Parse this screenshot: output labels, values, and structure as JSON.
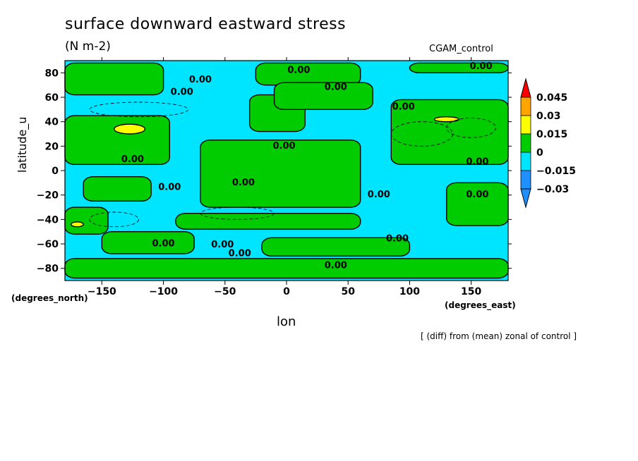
{
  "chart_data": {
    "type": "heatmap",
    "title": "surface downward eastward stress",
    "subtitle": "(N m-2)",
    "run_label": "CGAM_control",
    "xlabel": "lon",
    "ylabel": "latitude_u",
    "x_units": "(degrees_east)",
    "y_units": "(degrees_north)",
    "note": "[ (diff) from (mean) zonal of control ]",
    "xlim": [
      -180,
      180
    ],
    "ylim": [
      -90,
      90
    ],
    "xticks": [
      -150,
      -100,
      -50,
      0,
      50,
      100,
      150
    ],
    "yticks": [
      80,
      60,
      40,
      20,
      0,
      -20,
      -40,
      -60,
      -80
    ],
    "colorbar": {
      "levels": [
        "0.045",
        "0.03",
        "0.015",
        "0",
        "-0.015",
        "-0.03"
      ],
      "colors": [
        "#ff0000",
        "#ffa500",
        "#ffff00",
        "#00cc00",
        "#00e5ff",
        "#1e90ff"
      ]
    },
    "contour_label": "0.00",
    "positive_regions": [
      {
        "lon": [
          -180,
          -100
        ],
        "lat": [
          62,
          88
        ]
      },
      {
        "lon": [
          -25,
          60
        ],
        "lat": [
          70,
          88
        ]
      },
      {
        "lon": [
          100,
          180
        ],
        "lat": [
          80,
          88
        ]
      },
      {
        "lon": [
          -180,
          -95
        ],
        "lat": [
          5,
          45
        ]
      },
      {
        "lon": [
          -30,
          15
        ],
        "lat": [
          32,
          62
        ]
      },
      {
        "lon": [
          -10,
          70
        ],
        "lat": [
          50,
          72
        ]
      },
      {
        "lon": [
          85,
          180
        ],
        "lat": [
          5,
          58
        ]
      },
      {
        "lon": [
          -70,
          60
        ],
        "lat": [
          -30,
          25
        ]
      },
      {
        "lon": [
          -165,
          -110
        ],
        "lat": [
          -25,
          -5
        ]
      },
      {
        "lon": [
          130,
          180
        ],
        "lat": [
          -45,
          -10
        ]
      },
      {
        "lon": [
          -180,
          -145
        ],
        "lat": [
          -52,
          -30
        ]
      },
      {
        "lon": [
          -90,
          60
        ],
        "lat": [
          -48,
          -35
        ]
      },
      {
        "lon": [
          -150,
          -75
        ],
        "lat": [
          -68,
          -50
        ]
      },
      {
        "lon": [
          -20,
          100
        ],
        "lat": [
          -70,
          -55
        ]
      },
      {
        "lon": [
          -180,
          180
        ],
        "lat": [
          -88,
          -72
        ]
      }
    ],
    "high_regions": [
      {
        "lon": [
          -140,
          -115
        ],
        "lat": [
          30,
          38
        ],
        "level": "0.015"
      },
      {
        "lon": [
          120,
          140
        ],
        "lat": [
          40,
          44
        ],
        "level": "0.015"
      },
      {
        "lon": [
          -175,
          -165
        ],
        "lat": [
          -46,
          -42
        ],
        "level": "0.015"
      }
    ]
  }
}
